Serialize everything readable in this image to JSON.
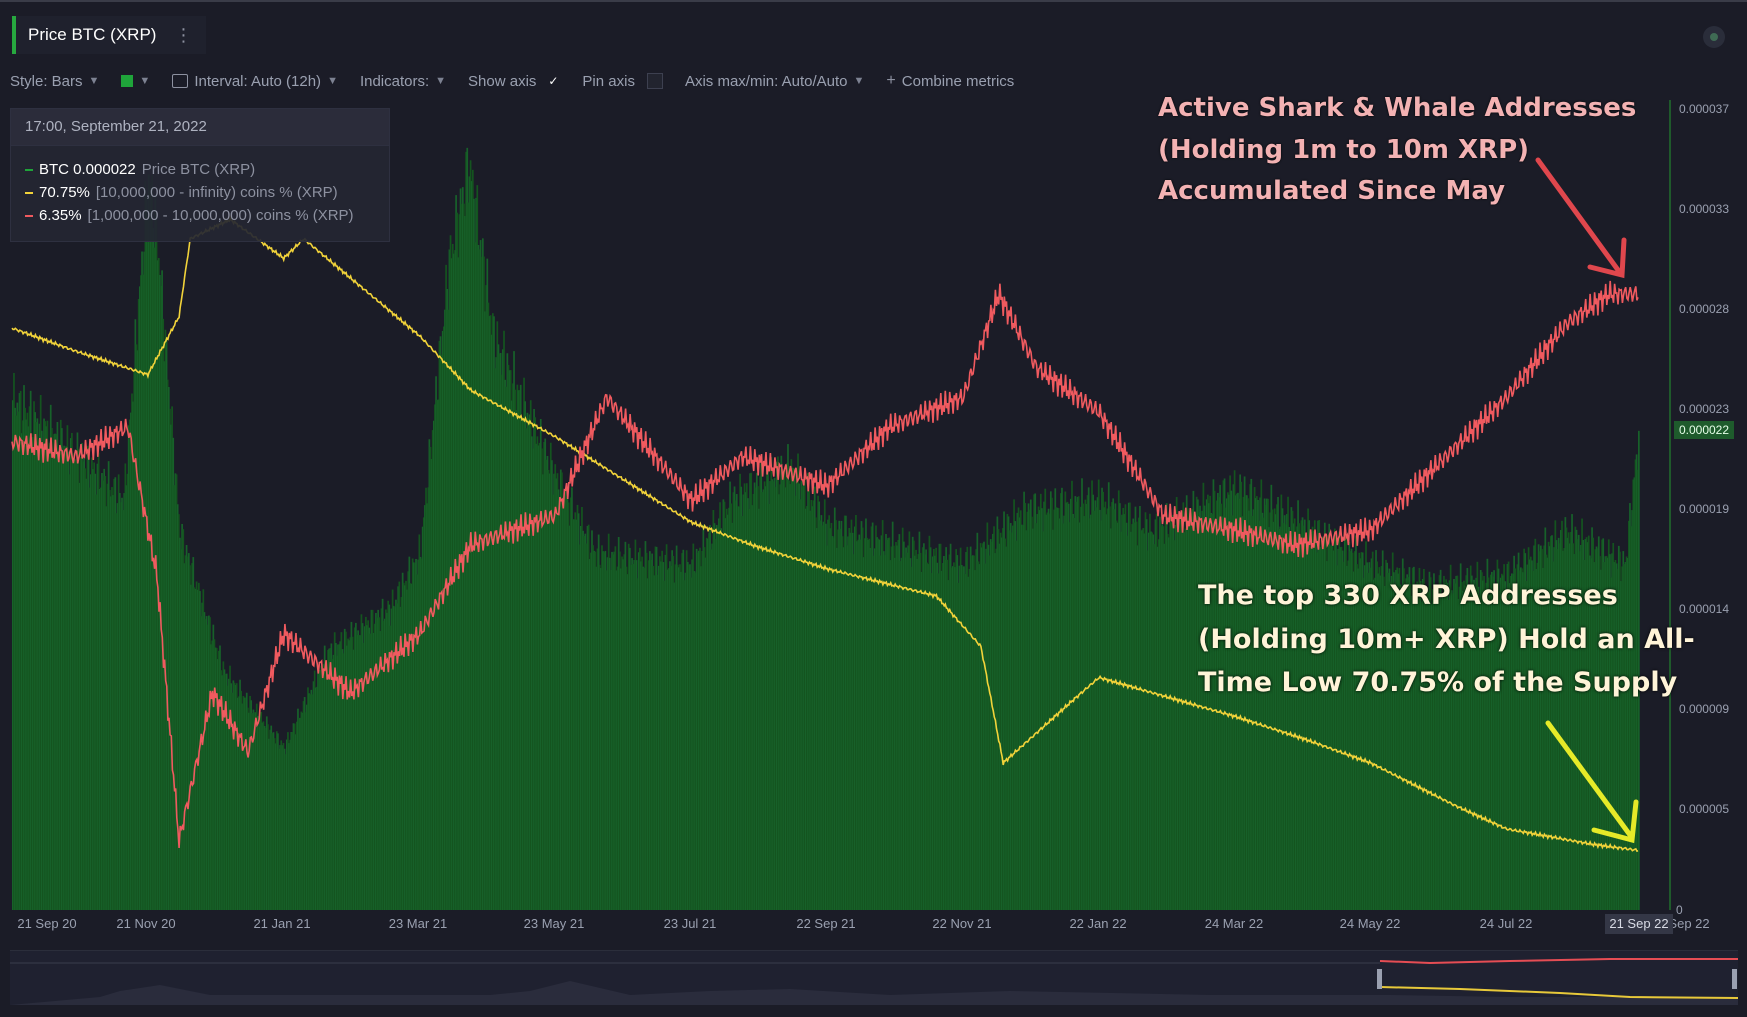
{
  "tab": {
    "title": "Price BTC (XRP)",
    "menu": "⋮"
  },
  "toolbar": {
    "style": "Style: Bars",
    "interval": "Interval: Auto (12h)",
    "indicators": "Indicators:",
    "show_axis": "Show axis",
    "pin_axis": "Pin axis",
    "axis_maxmin": "Axis max/min: Auto/Auto",
    "combine": "Combine metrics"
  },
  "info": {
    "date": "17:00, September 21, 2022",
    "rows": [
      {
        "value": "BTC 0.000022",
        "desc": "Price BTC (XRP)",
        "color": "#1fa43a"
      },
      {
        "value": "70.75%",
        "desc": "[10,000,000 - infinity) coins % (XRP)",
        "color": "#f2d33a"
      },
      {
        "value": "6.35%",
        "desc": "[1,000,000 - 10,000,000) coins % (XRP)",
        "color": "#f05a5f"
      }
    ]
  },
  "annotations": {
    "red": [
      "Active Shark & Whale Addresses",
      "(Holding 1m to 10m XRP)",
      "Accumulated Since May"
    ],
    "yellow": [
      "The top 330 XRP Addresses",
      "(Holding 10m+ XRP) Hold an All-",
      "Time Low 70.75% of the Supply"
    ]
  },
  "colors": {
    "price": "#1fa43a",
    "whales": "#f2d33a",
    "sharks": "#f05a5f",
    "background": "#1b1c27"
  },
  "chart_data": {
    "type": "bar",
    "x_start": "2020-09-21",
    "x_end": "2022-09-21",
    "x_ticks": [
      "21 Sep 20",
      "21 Nov 20",
      "21 Jan 21",
      "23 Mar 21",
      "23 May 21",
      "23 Jul 21",
      "22 Sep 21",
      "22 Nov 21",
      "22 Jan 22",
      "24 Mar 22",
      "24 May 22",
      "24 Jul 22",
      "22 Sep 22"
    ],
    "x_last_label": "21 Sep 22",
    "y_ticks": [
      "0.000037",
      "0.000033",
      "0.000028",
      "0.000023",
      "0.000019",
      "0.000014",
      "0.000009",
      "0.000005",
      "0"
    ],
    "y_last": "0.000022",
    "ylim": [
      0,
      3.75e-05
    ],
    "series": [
      {
        "name": "Price BTC (XRP)",
        "style": "bars",
        "color": "#1fa43a",
        "x": [
          "2020-09-21",
          "2020-10-21",
          "2020-11-10",
          "2020-11-21",
          "2020-11-25",
          "2020-12-05",
          "2020-12-25",
          "2021-01-21",
          "2021-02-10",
          "2021-03-10",
          "2021-03-23",
          "2021-04-05",
          "2021-04-14",
          "2021-04-25",
          "2021-05-23",
          "2021-06-10",
          "2021-07-23",
          "2021-08-10",
          "2021-09-05",
          "2021-09-22",
          "2021-10-20",
          "2021-11-22",
          "2021-12-20",
          "2022-01-22",
          "2022-02-15",
          "2022-03-24",
          "2022-04-20",
          "2022-05-24",
          "2022-06-20",
          "2022-07-24",
          "2022-08-20",
          "2022-09-15",
          "2022-09-21"
        ],
        "values": [
          2.36e-05,
          2.1e-05,
          1.9e-05,
          3.4e-05,
          3.1e-05,
          1.75e-05,
          1.1e-05,
          7.5e-06,
          1.2e-05,
          1.4e-05,
          1.65e-05,
          3e-05,
          3.45e-05,
          2.65e-05,
          2e-05,
          1.65e-05,
          1.6e-05,
          1.9e-05,
          2.05e-05,
          1.78e-05,
          1.7e-05,
          1.6e-05,
          1.85e-05,
          1.9e-05,
          1.75e-05,
          1.95e-05,
          1.8e-05,
          1.6e-05,
          1.5e-05,
          1.55e-05,
          1.75e-05,
          1.6e-05,
          2.2e-05
        ]
      },
      {
        "name": "[10,000,000 - infinity) coins %",
        "style": "line",
        "color": "#f2d33a",
        "x": [
          "2020-09-21",
          "2020-10-20",
          "2020-11-21",
          "2020-12-05",
          "2020-12-10",
          "2020-12-28",
          "2021-01-21",
          "2021-01-30",
          "2021-03-23",
          "2021-04-15",
          "2021-05-23",
          "2021-07-23",
          "2021-08-20",
          "2021-09-22",
          "2021-11-10",
          "2021-11-30",
          "2021-12-10",
          "2022-01-10",
          "2022-01-22",
          "2022-03-24",
          "2022-04-25",
          "2022-05-24",
          "2022-07-01",
          "2022-07-24",
          "2022-09-01",
          "2022-09-21"
        ],
        "values": [
          84.2,
          83.6,
          83.0,
          84.5,
          86.5,
          87.0,
          86.0,
          86.5,
          84.0,
          82.6,
          81.4,
          79.2,
          78.6,
          78.0,
          77.3,
          76.0,
          73.0,
          74.6,
          75.2,
          74.2,
          73.6,
          73.0,
          71.9,
          71.3,
          70.9,
          70.75
        ]
      },
      {
        "name": "[1,000,000 - 10,000,000) coins %",
        "style": "line",
        "color": "#f05a5f",
        "x": [
          "2020-09-21",
          "2020-10-20",
          "2020-11-12",
          "2020-11-25",
          "2020-12-05",
          "2020-12-20",
          "2021-01-05",
          "2021-01-21",
          "2021-02-20",
          "2021-03-23",
          "2021-04-15",
          "2021-05-23",
          "2021-06-15",
          "2021-07-23",
          "2021-08-15",
          "2021-09-22",
          "2021-10-20",
          "2021-11-22",
          "2021-12-08",
          "2021-12-25",
          "2022-01-22",
          "2022-02-20",
          "2022-03-24",
          "2022-04-20",
          "2022-05-24",
          "2022-06-20",
          "2022-07-24",
          "2022-08-20",
          "2022-09-08",
          "2022-09-21"
        ],
        "values": [
          5.85,
          5.8,
          5.9,
          5.4,
          4.5,
          5.0,
          4.8,
          5.2,
          5.0,
          5.2,
          5.5,
          5.6,
          6.0,
          5.65,
          5.8,
          5.7,
          5.9,
          6.0,
          6.35,
          6.1,
          5.95,
          5.6,
          5.55,
          5.5,
          5.55,
          5.75,
          6.0,
          6.25,
          6.35,
          6.35
        ]
      }
    ]
  }
}
